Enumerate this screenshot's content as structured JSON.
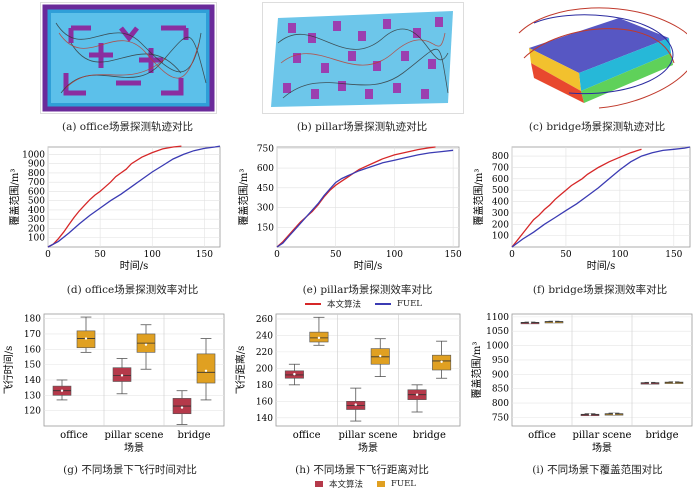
{
  "captions": {
    "a": "(a) office场景探测轨迹对比",
    "b": "(b) pillar场景探测轨迹对比",
    "c": "(c) bridge场景探测轨迹对比",
    "d": "(d) office场景探测效率对比",
    "e": "(e) pillar场景探测效率对比",
    "f": "(f) bridge场景探测效率对比",
    "g": "(g) 不同场景下飞行时间对比",
    "h": "(h) 不同场景下飞行距离对比",
    "i": "(i) 不同场景下覆盖范围对比"
  },
  "legend": {
    "ours": "本文算法",
    "fuel": "FUEL"
  },
  "colors": {
    "ours": "#d62728",
    "fuel": "#3b3bb3",
    "box_ours": "#b5394a",
    "box_fuel": "#e0a021"
  },
  "chart_data": [
    {
      "id": "d",
      "type": "line",
      "title": "",
      "xlabel": "时间/s",
      "ylabel": "覆盖范围/m³",
      "xlim": [
        0,
        165
      ],
      "ylim": [
        0,
        1080
      ],
      "xticks": [
        0,
        50,
        100,
        150
      ],
      "yticks": [
        100,
        200,
        300,
        400,
        500,
        600,
        700,
        800,
        900,
        1000
      ],
      "series": [
        {
          "name": "本文算法",
          "points": [
            [
              0,
              0
            ],
            [
              5,
              30
            ],
            [
              10,
              90
            ],
            [
              15,
              160
            ],
            [
              20,
              240
            ],
            [
              25,
              320
            ],
            [
              30,
              390
            ],
            [
              35,
              450
            ],
            [
              40,
              510
            ],
            [
              45,
              560
            ],
            [
              50,
              600
            ],
            [
              55,
              650
            ],
            [
              60,
              700
            ],
            [
              65,
              760
            ],
            [
              70,
              800
            ],
            [
              75,
              840
            ],
            [
              80,
              900
            ],
            [
              90,
              970
            ],
            [
              100,
              1020
            ],
            [
              110,
              1060
            ],
            [
              120,
              1080
            ],
            [
              128,
              1090
            ]
          ]
        },
        {
          "name": "FUEL",
          "points": [
            [
              0,
              0
            ],
            [
              10,
              60
            ],
            [
              20,
              150
            ],
            [
              30,
              250
            ],
            [
              40,
              340
            ],
            [
              50,
              420
            ],
            [
              60,
              500
            ],
            [
              70,
              570
            ],
            [
              80,
              650
            ],
            [
              90,
              730
            ],
            [
              100,
              810
            ],
            [
              110,
              880
            ],
            [
              120,
              950
            ],
            [
              130,
              1000
            ],
            [
              140,
              1040
            ],
            [
              150,
              1065
            ],
            [
              160,
              1080
            ],
            [
              165,
              1090
            ]
          ]
        }
      ]
    },
    {
      "id": "e",
      "type": "line",
      "title": "",
      "xlabel": "时间/s",
      "ylabel": "覆盖范围/m³",
      "xlim": [
        0,
        155
      ],
      "ylim": [
        0,
        760
      ],
      "xticks": [
        0,
        50,
        100,
        150
      ],
      "yticks": [
        150,
        300,
        450,
        600,
        750
      ],
      "series": [
        {
          "name": "本文算法",
          "points": [
            [
              0,
              0
            ],
            [
              5,
              40
            ],
            [
              10,
              90
            ],
            [
              15,
              140
            ],
            [
              20,
              190
            ],
            [
              25,
              230
            ],
            [
              30,
              270
            ],
            [
              35,
              320
            ],
            [
              40,
              380
            ],
            [
              45,
              430
            ],
            [
              50,
              470
            ],
            [
              55,
              500
            ],
            [
              60,
              530
            ],
            [
              65,
              560
            ],
            [
              70,
              590
            ],
            [
              80,
              630
            ],
            [
              90,
              670
            ],
            [
              100,
              700
            ],
            [
              110,
              720
            ],
            [
              120,
              740
            ],
            [
              130,
              755
            ],
            [
              135,
              760
            ]
          ]
        },
        {
          "name": "FUEL",
          "points": [
            [
              0,
              0
            ],
            [
              5,
              30
            ],
            [
              10,
              80
            ],
            [
              15,
              130
            ],
            [
              20,
              180
            ],
            [
              25,
              230
            ],
            [
              30,
              280
            ],
            [
              35,
              330
            ],
            [
              40,
              390
            ],
            [
              45,
              440
            ],
            [
              50,
              490
            ],
            [
              55,
              520
            ],
            [
              60,
              540
            ],
            [
              65,
              560
            ],
            [
              70,
              580
            ],
            [
              80,
              610
            ],
            [
              90,
              640
            ],
            [
              100,
              660
            ],
            [
              110,
              680
            ],
            [
              120,
              700
            ],
            [
              130,
              715
            ],
            [
              140,
              725
            ],
            [
              150,
              735
            ]
          ]
        }
      ]
    },
    {
      "id": "f",
      "type": "line",
      "title": "",
      "xlabel": "时间/s",
      "ylabel": "覆盖范围/m³",
      "xlim": [
        0,
        165
      ],
      "ylim": [
        0,
        880
      ],
      "xticks": [
        0,
        50,
        100,
        150
      ],
      "yticks": [
        100,
        200,
        300,
        400,
        500,
        600,
        700,
        800
      ],
      "series": [
        {
          "name": "本文算法",
          "points": [
            [
              0,
              0
            ],
            [
              5,
              60
            ],
            [
              10,
              120
            ],
            [
              15,
              180
            ],
            [
              20,
              240
            ],
            [
              25,
              280
            ],
            [
              30,
              330
            ],
            [
              35,
              370
            ],
            [
              40,
              420
            ],
            [
              45,
              460
            ],
            [
              50,
              500
            ],
            [
              55,
              540
            ],
            [
              60,
              570
            ],
            [
              65,
              600
            ],
            [
              70,
              640
            ],
            [
              80,
              700
            ],
            [
              90,
              750
            ],
            [
              100,
              790
            ],
            [
              110,
              830
            ],
            [
              120,
              860
            ]
          ]
        },
        {
          "name": "FUEL",
          "points": [
            [
              0,
              0
            ],
            [
              10,
              70
            ],
            [
              20,
              130
            ],
            [
              30,
              200
            ],
            [
              40,
              260
            ],
            [
              50,
              320
            ],
            [
              60,
              380
            ],
            [
              70,
              450
            ],
            [
              80,
              520
            ],
            [
              90,
              600
            ],
            [
              100,
              680
            ],
            [
              110,
              750
            ],
            [
              120,
              800
            ],
            [
              130,
              830
            ],
            [
              140,
              850
            ],
            [
              150,
              860
            ],
            [
              160,
              870
            ],
            [
              165,
              880
            ]
          ]
        }
      ]
    },
    {
      "id": "g",
      "type": "box",
      "xlabel": "场景",
      "ylabel": "飞行时间/s",
      "ylim": [
        110,
        183
      ],
      "yticks": [
        120,
        130,
        140,
        150,
        160,
        170,
        180
      ],
      "categories": [
        "office",
        "pillar scene",
        "bridge"
      ],
      "series": [
        {
          "name": "本文算法",
          "boxes": [
            {
              "min": 127,
              "q1": 130,
              "median": 133,
              "q3": 136,
              "max": 140,
              "mean": 133
            },
            {
              "min": 131,
              "q1": 139,
              "median": 143,
              "q3": 148,
              "max": 154,
              "mean": 143
            },
            {
              "min": 111,
              "q1": 118,
              "median": 123,
              "q3": 128,
              "max": 133,
              "mean": 122
            }
          ]
        },
        {
          "name": "FUEL",
          "boxes": [
            {
              "min": 158,
              "q1": 161,
              "median": 167,
              "q3": 172,
              "max": 181,
              "mean": 167
            },
            {
              "min": 147,
              "q1": 158,
              "median": 164,
              "q3": 170,
              "max": 176,
              "mean": 163
            },
            {
              "min": 127,
              "q1": 138,
              "median": 145,
              "q3": 157,
              "max": 167,
              "mean": 146
            }
          ]
        }
      ]
    },
    {
      "id": "h",
      "type": "box",
      "xlabel": "场景",
      "ylabel": "飞行距离/s",
      "ylim": [
        130,
        266
      ],
      "yticks": [
        140,
        160,
        180,
        200,
        220,
        240,
        260
      ],
      "categories": [
        "office",
        "pillar scene",
        "bridge"
      ],
      "series": [
        {
          "name": "本文算法",
          "boxes": [
            {
              "min": 180,
              "q1": 188,
              "median": 192,
              "q3": 197,
              "max": 205,
              "mean": 193
            },
            {
              "min": 136,
              "q1": 150,
              "median": 155,
              "q3": 160,
              "max": 176,
              "mean": 156
            },
            {
              "min": 147,
              "q1": 162,
              "median": 168,
              "q3": 174,
              "max": 180,
              "mean": 168
            }
          ]
        },
        {
          "name": "FUEL",
          "boxes": [
            {
              "min": 228,
              "q1": 232,
              "median": 237,
              "q3": 244,
              "max": 262,
              "mean": 237
            },
            {
              "min": 190,
              "q1": 205,
              "median": 214,
              "q3": 224,
              "max": 236,
              "mean": 215
            },
            {
              "min": 188,
              "q1": 198,
              "median": 209,
              "q3": 216,
              "max": 233,
              "mean": 208
            }
          ]
        }
      ]
    },
    {
      "id": "i",
      "type": "box",
      "xlabel": "场景",
      "ylabel": "覆盖范围/m³",
      "ylim": [
        720,
        1110
      ],
      "yticks": [
        750,
        800,
        850,
        900,
        950,
        1000,
        1050,
        1100
      ],
      "categories": [
        "office",
        "pillar scene",
        "bridge"
      ],
      "series": [
        {
          "name": "本文算法",
          "boxes": [
            {
              "min": 1077,
              "q1": 1079,
              "median": 1080,
              "q3": 1081,
              "max": 1082,
              "mean": 1080
            },
            {
              "min": 757,
              "q1": 759,
              "median": 760,
              "q3": 761,
              "max": 763,
              "mean": 760
            },
            {
              "min": 868,
              "q1": 869,
              "median": 870,
              "q3": 871,
              "max": 872,
              "mean": 870
            }
          ]
        },
        {
          "name": "FUEL",
          "boxes": [
            {
              "min": 1080,
              "q1": 1082,
              "median": 1083,
              "q3": 1084,
              "max": 1085,
              "mean": 1083
            },
            {
              "min": 759,
              "q1": 761,
              "median": 762,
              "q3": 763,
              "max": 765,
              "mean": 762
            },
            {
              "min": 870,
              "q1": 871,
              "median": 872,
              "q3": 873,
              "max": 874,
              "mean": 872
            }
          ]
        }
      ]
    }
  ]
}
